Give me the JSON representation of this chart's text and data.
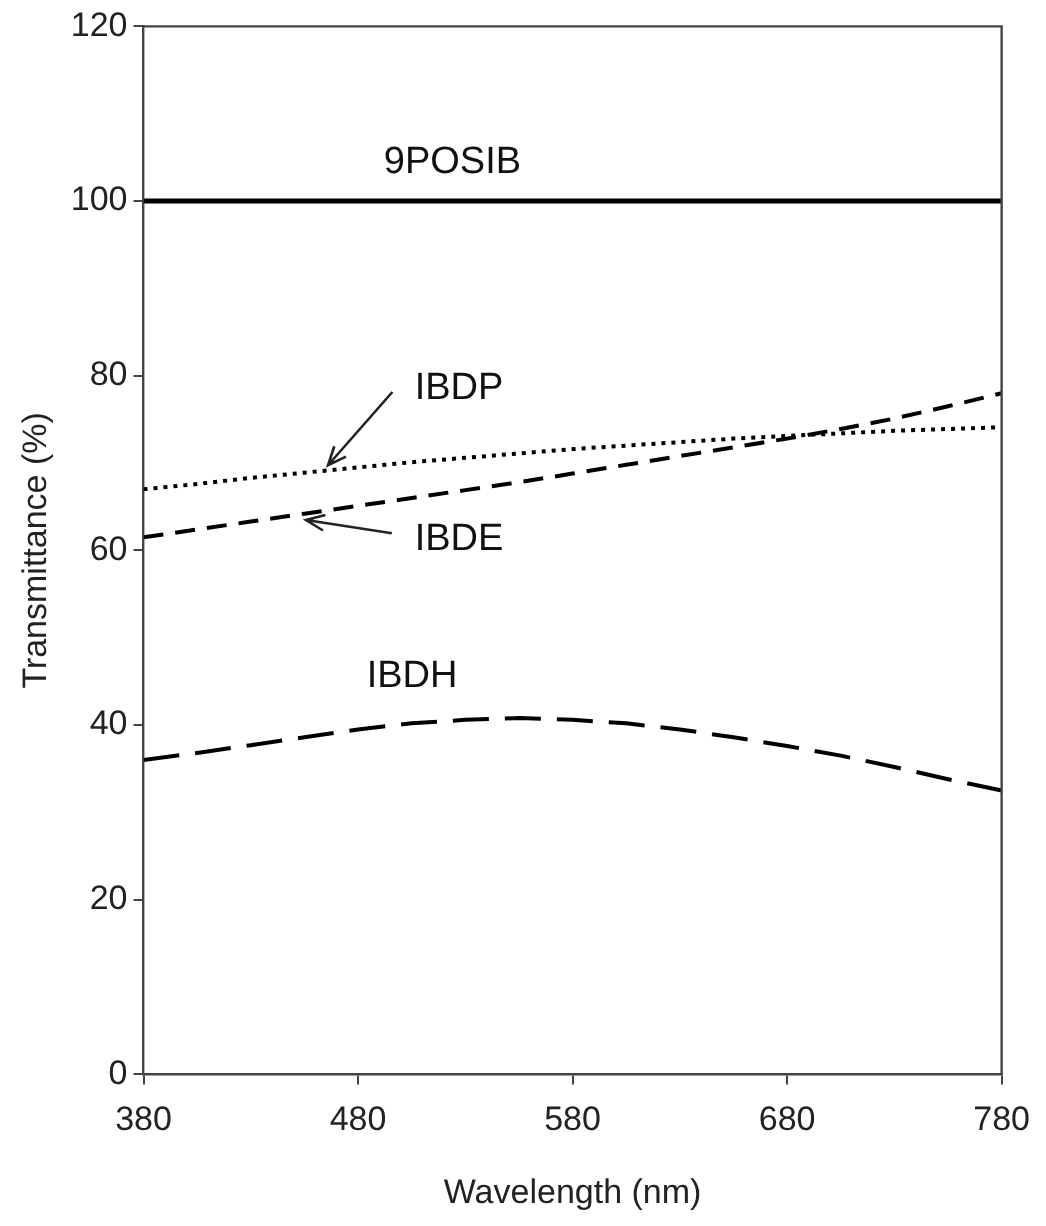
{
  "chart_data": {
    "type": "line",
    "xlabel": "Wavelength (nm)",
    "ylabel": "Transmittance (%)",
    "x": [
      380,
      405,
      430,
      455,
      480,
      505,
      530,
      555,
      580,
      605,
      630,
      655,
      680,
      705,
      730,
      755,
      780
    ],
    "xlim": [
      380,
      780
    ],
    "xticks": [
      380,
      480,
      580,
      680,
      780
    ],
    "ylim": [
      0,
      120
    ],
    "yticks": [
      0,
      20,
      40,
      60,
      80,
      100,
      120
    ],
    "grid": false,
    "legend": false,
    "marker": "none",
    "series": [
      {
        "name": "9POSIB",
        "color": "#000000",
        "line_style": "solid",
        "values": [
          100,
          100,
          100,
          100,
          100,
          100,
          100,
          100,
          100,
          100,
          100,
          100,
          100,
          100,
          100,
          100,
          100
        ]
      },
      {
        "name": "IBDP",
        "color": "#000000",
        "line_style": "dotted",
        "values": [
          67,
          67.6,
          68.3,
          68.9,
          69.5,
          70.1,
          70.6,
          71.1,
          71.6,
          72,
          72.4,
          72.8,
          73.1,
          73.4,
          73.7,
          73.9,
          74.1
        ]
      },
      {
        "name": "IBDE",
        "color": "#000000",
        "line_style": "dashed",
        "values": [
          61.5,
          62.4,
          63.3,
          64.2,
          65.1,
          66,
          66.9,
          67.8,
          68.8,
          69.8,
          70.8,
          71.8,
          72.8,
          73.9,
          75.1,
          76.5,
          78
        ]
      },
      {
        "name": "IBDH",
        "color": "#000000",
        "line_style": "dashed",
        "values": [
          36,
          36.8,
          37.7,
          38.6,
          39.5,
          40.2,
          40.6,
          40.8,
          40.6,
          40.2,
          39.5,
          38.6,
          37.6,
          36.5,
          35.2,
          33.8,
          32.5
        ]
      }
    ]
  }
}
